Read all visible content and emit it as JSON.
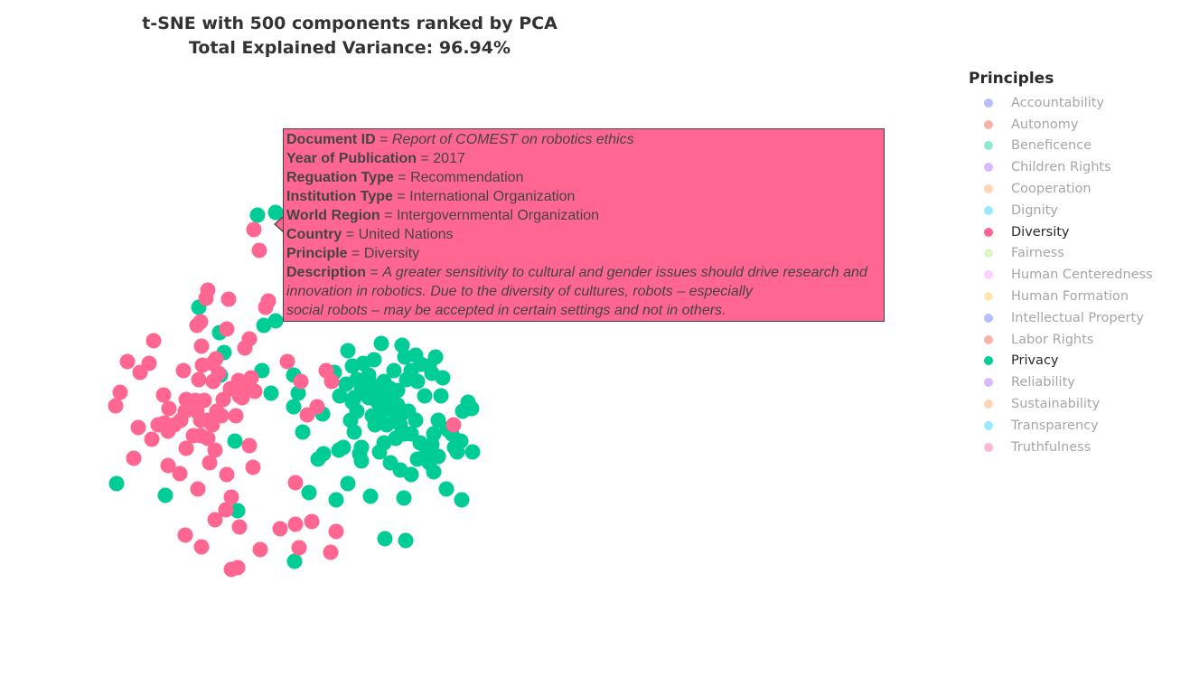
{
  "chart_data": {
    "type": "scatter",
    "title_line1": "t-SNE with 500 components ranked by PCA",
    "title_line2": "Total Explained Variance: 96.94%",
    "legend": {
      "title": "Principles",
      "entries": [
        {
          "name": "Accountability",
          "color": "#636efa",
          "visible": false
        },
        {
          "name": "Autonomy",
          "color": "#ef553b",
          "visible": false
        },
        {
          "name": "Beneficence",
          "color": "#00cc96",
          "visible": false
        },
        {
          "name": "Children Rights",
          "color": "#ab63fa",
          "visible": false
        },
        {
          "name": "Cooperation",
          "color": "#ffa15a",
          "visible": false
        },
        {
          "name": "Dignity",
          "color": "#19d3f3",
          "visible": false
        },
        {
          "name": "Diversity",
          "color": "#ff6692",
          "visible": true
        },
        {
          "name": "Fairness",
          "color": "#b6e880",
          "visible": false
        },
        {
          "name": "Human Centeredness",
          "color": "#ff97ff",
          "visible": false
        },
        {
          "name": "Human Formation",
          "color": "#fecb52",
          "visible": false
        },
        {
          "name": "Intellectual Property",
          "color": "#636efa",
          "visible": false
        },
        {
          "name": "Labor Rights",
          "color": "#ef553b",
          "visible": false
        },
        {
          "name": "Privacy",
          "color": "#00cc96",
          "visible": true
        },
        {
          "name": "Reliability",
          "color": "#ab63fa",
          "visible": false
        },
        {
          "name": "Sustainability",
          "color": "#ffa15a",
          "visible": false
        },
        {
          "name": "Transparency",
          "color": "#19d3f3",
          "visible": false
        },
        {
          "name": "Truthfulness",
          "color": "#ff6692",
          "visible": false
        }
      ]
    },
    "series": [
      {
        "name": "Privacy",
        "color": "#00cc96",
        "points": [
          [
            285,
            238
          ],
          [
            305,
            235
          ],
          [
            220,
            340
          ],
          [
            243,
            368
          ],
          [
            248,
            390
          ],
          [
            244,
            415
          ],
          [
            260,
            488
          ],
          [
            263,
            565
          ],
          [
            183,
            548
          ],
          [
            129,
            535
          ],
          [
            292,
            360
          ],
          [
            305,
            355
          ],
          [
            290,
            410
          ],
          [
            300,
            435
          ],
          [
            325,
            415
          ],
          [
            330,
            435
          ],
          [
            325,
            450
          ],
          [
            335,
            478
          ],
          [
            342,
            545
          ],
          [
            352,
            508
          ],
          [
            358,
            502
          ],
          [
            357,
            458
          ],
          [
            370,
            412
          ],
          [
            376,
            438
          ],
          [
            383,
            425
          ],
          [
            385,
            388
          ],
          [
            390,
            405
          ],
          [
            395,
            420
          ],
          [
            392,
            440
          ],
          [
            388,
            465
          ],
          [
            392,
            478
          ],
          [
            385,
            535
          ],
          [
            372,
            553
          ],
          [
            375,
            498
          ],
          [
            380,
            495
          ],
          [
            400,
            495
          ],
          [
            398,
            502
          ],
          [
            402,
            402
          ],
          [
            408,
            415
          ],
          [
            410,
            425
          ],
          [
            414,
            398
          ],
          [
            418,
            445
          ],
          [
            412,
            460
          ],
          [
            410,
            549
          ],
          [
            422,
            380
          ],
          [
            425,
            422
          ],
          [
            428,
            450
          ],
          [
            432,
            430
          ],
          [
            436,
            410
          ],
          [
            440,
            448
          ],
          [
            442,
            462
          ],
          [
            445,
            382
          ],
          [
            448,
            395
          ],
          [
            450,
            420
          ],
          [
            452,
            455
          ],
          [
            455,
            410
          ],
          [
            460,
            393
          ],
          [
            462,
            422
          ],
          [
            466,
            403
          ],
          [
            470,
            438
          ],
          [
            475,
            405
          ],
          [
            478,
            413
          ],
          [
            482,
            395
          ],
          [
            490,
            418
          ],
          [
            488,
            438
          ],
          [
            485,
            465
          ],
          [
            480,
            480
          ],
          [
            478,
            492
          ],
          [
            485,
            505
          ],
          [
            475,
            512
          ],
          [
            480,
            522
          ],
          [
            470,
            505
          ],
          [
            465,
            490
          ],
          [
            455,
            480
          ],
          [
            460,
            465
          ],
          [
            448,
            480
          ],
          [
            443,
            470
          ],
          [
            438,
            485
          ],
          [
            425,
            490
          ],
          [
            428,
            470
          ],
          [
            420,
            460
          ],
          [
            415,
            470
          ],
          [
            408,
            440
          ],
          [
            400,
            430
          ],
          [
            395,
            455
          ],
          [
            390,
            445
          ],
          [
            400,
            510
          ],
          [
            420,
            500
          ],
          [
            432,
            512
          ],
          [
            443,
            520
          ],
          [
            455,
            525
          ],
          [
            462,
            508
          ],
          [
            474,
            498
          ],
          [
            495,
            475
          ],
          [
            500,
            480
          ],
          [
            503,
            495
          ],
          [
            506,
            500
          ],
          [
            510,
            488
          ],
          [
            512,
            455
          ],
          [
            518,
            445
          ],
          [
            522,
            452
          ],
          [
            523,
            500
          ],
          [
            494,
            541
          ],
          [
            511,
            553
          ],
          [
            426,
            596
          ],
          [
            449,
            598
          ],
          [
            447,
            551
          ],
          [
            326,
            621
          ],
          [
            440,
            432
          ],
          [
            435,
            455
          ],
          [
            425,
            440
          ],
          [
            418,
            430
          ],
          [
            430,
            445
          ]
        ]
      },
      {
        "name": "Diversity",
        "color": "#ff6692",
        "points": [
          [
            281,
            254
          ],
          [
            287,
            277
          ],
          [
            297,
            333
          ],
          [
            294,
            340
          ],
          [
            276,
            375
          ],
          [
            271,
            385
          ],
          [
            253,
            331
          ],
          [
            230,
            321
          ],
          [
            228,
            330
          ],
          [
            218,
            360
          ],
          [
            222,
            356
          ],
          [
            251,
            364
          ],
          [
            223,
            383
          ],
          [
            239,
            397
          ],
          [
            242,
            413
          ],
          [
            235,
            402
          ],
          [
            236,
            422
          ],
          [
            220,
            420
          ],
          [
            224,
            404
          ],
          [
            203,
            410
          ],
          [
            170,
            377
          ],
          [
            141,
            400
          ],
          [
            155,
            412
          ],
          [
            165,
            402
          ],
          [
            133,
            434
          ],
          [
            128,
            449
          ],
          [
            181,
            437
          ],
          [
            187,
            452
          ],
          [
            206,
            442
          ],
          [
            216,
            443
          ],
          [
            226,
            443
          ],
          [
            205,
            455
          ],
          [
            200,
            465
          ],
          [
            193,
            470
          ],
          [
            182,
            468
          ],
          [
            175,
            470
          ],
          [
            186,
            477
          ],
          [
            153,
            473
          ],
          [
            168,
            486
          ],
          [
            148,
            507
          ],
          [
            206,
            496
          ],
          [
            214,
            482
          ],
          [
            222,
            482
          ],
          [
            230,
            485
          ],
          [
            235,
            470
          ],
          [
            230,
            465
          ],
          [
            222,
            465
          ],
          [
            218,
            455
          ],
          [
            240,
            455
          ],
          [
            247,
            442
          ],
          [
            245,
            460
          ],
          [
            255,
            430
          ],
          [
            263,
            432
          ],
          [
            270,
            427
          ],
          [
            268,
            440
          ],
          [
            261,
            460
          ],
          [
            265,
            438
          ],
          [
            282,
            433
          ],
          [
            278,
            418
          ],
          [
            264,
            421
          ],
          [
            238,
            498
          ],
          [
            232,
            512
          ],
          [
            251,
            525
          ],
          [
            280,
            517
          ],
          [
            276,
            493
          ],
          [
            186,
            515
          ],
          [
            199,
            524
          ],
          [
            219,
            541
          ],
          [
            256,
            550
          ],
          [
            250,
            564
          ],
          [
            238,
            575
          ],
          [
            265,
            583
          ],
          [
            205,
            592
          ],
          [
            223,
            605
          ],
          [
            256,
            630
          ],
          [
            263,
            628
          ],
          [
            288,
            608
          ],
          [
            310,
            585
          ],
          [
            327,
            580
          ],
          [
            345,
            577
          ],
          [
            331,
            606
          ],
          [
            366,
            611
          ],
          [
            372,
            588
          ],
          [
            327,
            534
          ],
          [
            340,
            459
          ],
          [
            333,
            422
          ],
          [
            318,
            400
          ],
          [
            361,
            410
          ],
          [
            367,
            422
          ],
          [
            351,
            450
          ],
          [
            502,
            470
          ]
        ]
      }
    ]
  },
  "tooltip": {
    "document_id_label": "Document ID",
    "document_id": "Report of COMEST on robotics ethics",
    "year_label": "Year of Publication",
    "year": "2017",
    "regulation_label": "Reguation Type",
    "regulation": "Recommendation",
    "institution_label": "Institution Type",
    "institution": "International Organization",
    "region_label": "World Region",
    "region": "Intergovernmental Organization",
    "country_label": "Country",
    "country": "United Nations",
    "principle_label": "Principle",
    "principle": "Diversity",
    "description_label": "Description",
    "description_line1": "A greater sensitivity to cultural and gender issues should drive research and",
    "description_line2": "innovation in robotics. Due to the diversity of cultures, robots – especially",
    "description_line3": "social robots – may be accepted in certain settings and not in others."
  }
}
